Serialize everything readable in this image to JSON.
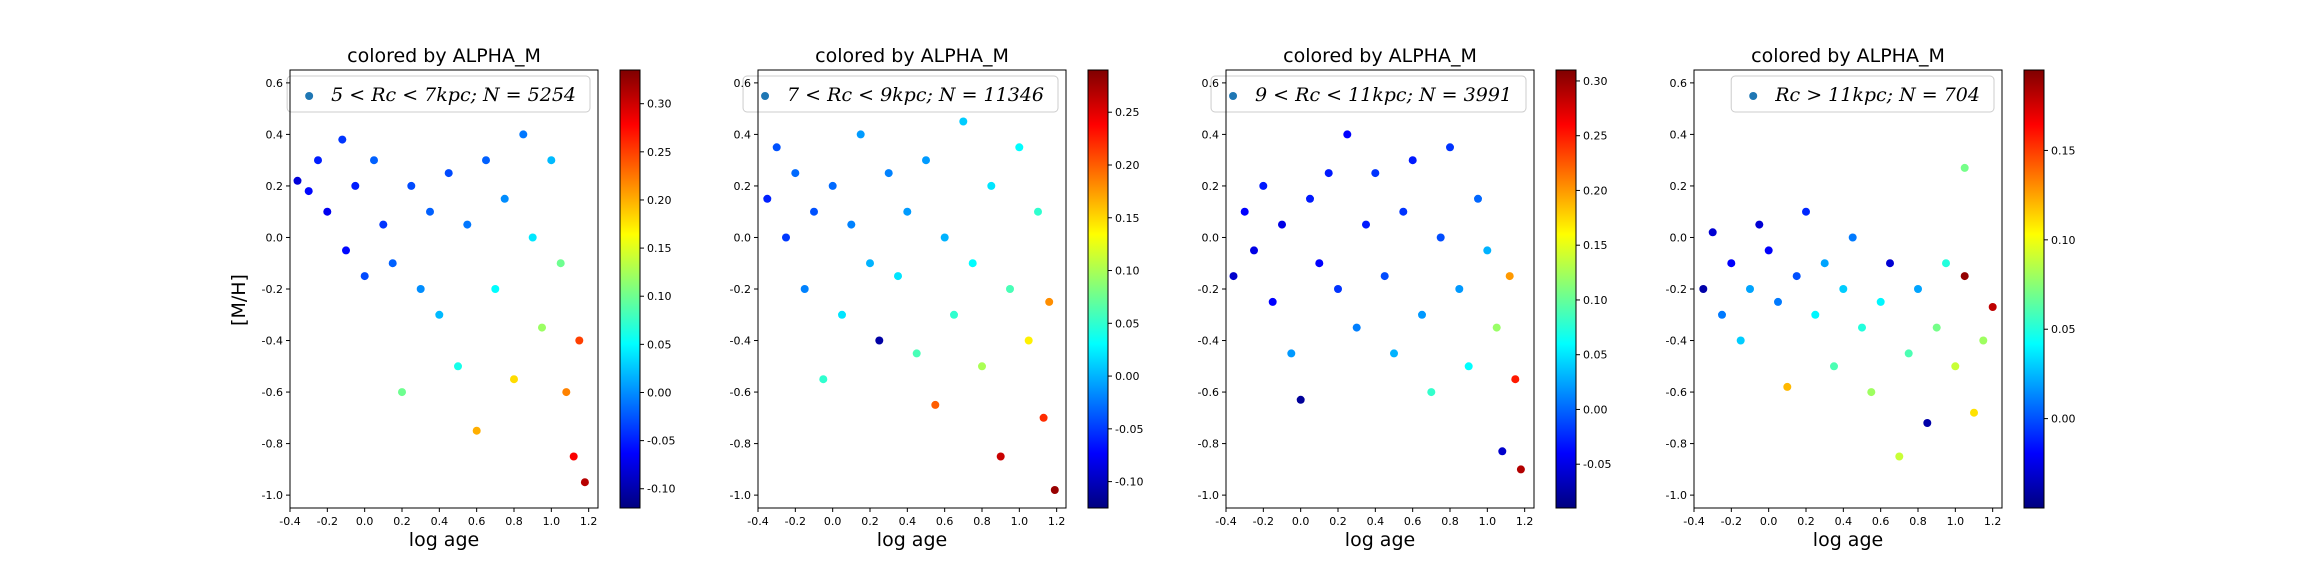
{
  "figure": {
    "shared_ylabel": "[M/H]",
    "colorscale": [
      "#00007f",
      "#0000ff",
      "#007fff",
      "#00ffff",
      "#7fff7f",
      "#ffff00",
      "#ff7f00",
      "#ff0000",
      "#7f0000"
    ]
  },
  "chart_data": [
    {
      "type": "scatter",
      "title": "colored by ALPHA_M",
      "xlabel": "log age",
      "ylabel": "[M/H]",
      "legend": {
        "label": "5 < Rc < 7kpc; N = 5254",
        "position": "top-right"
      },
      "xlim": [
        -0.4,
        1.25
      ],
      "ylim": [
        -1.05,
        0.65
      ],
      "xticks": [
        -0.4,
        -0.2,
        0.0,
        0.2,
        0.4,
        0.6,
        0.8,
        1.0,
        1.2
      ],
      "xtick_labels": [
        "-0.4",
        "-0.2",
        "0.0",
        "0.2",
        "0.4",
        "0.6",
        "0.8",
        "1.0",
        "1.2"
      ],
      "yticks": [
        -1.0,
        -0.8,
        -0.6,
        -0.4,
        -0.2,
        0.0,
        0.2,
        0.4,
        0.6
      ],
      "ytick_labels": [
        "-1.0",
        "-0.8",
        "-0.6",
        "-0.4",
        "-0.2",
        "0.0",
        "0.2",
        "0.4",
        "0.6"
      ],
      "colorbar": {
        "label": "ALPHA_M",
        "range": [
          -0.12,
          0.335
        ],
        "ticks": [
          -0.1,
          -0.05,
          0.0,
          0.05,
          0.1,
          0.15,
          0.2,
          0.25,
          0.3
        ],
        "tick_labels": [
          "-0.10",
          "-0.05",
          "0.00",
          "0.05",
          "0.10",
          "0.15",
          "0.20",
          "0.25",
          "0.30"
        ]
      },
      "points": [
        {
          "x": -0.36,
          "y": 0.22,
          "c": -0.08
        },
        {
          "x": -0.3,
          "y": 0.18,
          "c": -0.06
        },
        {
          "x": -0.25,
          "y": 0.3,
          "c": -0.05
        },
        {
          "x": -0.2,
          "y": 0.1,
          "c": -0.07
        },
        {
          "x": -0.12,
          "y": 0.38,
          "c": -0.04
        },
        {
          "x": -0.1,
          "y": -0.05,
          "c": -0.06
        },
        {
          "x": -0.05,
          "y": 0.2,
          "c": -0.05
        },
        {
          "x": 0.0,
          "y": -0.15,
          "c": -0.03
        },
        {
          "x": 0.05,
          "y": 0.3,
          "c": -0.02
        },
        {
          "x": 0.1,
          "y": 0.05,
          "c": -0.04
        },
        {
          "x": 0.15,
          "y": -0.1,
          "c": -0.02
        },
        {
          "x": 0.2,
          "y": -0.6,
          "c": 0.1
        },
        {
          "x": 0.25,
          "y": 0.2,
          "c": -0.03
        },
        {
          "x": 0.3,
          "y": -0.2,
          "c": 0.0
        },
        {
          "x": 0.35,
          "y": 0.1,
          "c": -0.02
        },
        {
          "x": 0.4,
          "y": -0.3,
          "c": 0.02
        },
        {
          "x": 0.45,
          "y": 0.25,
          "c": -0.03
        },
        {
          "x": 0.5,
          "y": -0.5,
          "c": 0.06
        },
        {
          "x": 0.55,
          "y": 0.05,
          "c": -0.01
        },
        {
          "x": 0.6,
          "y": -0.75,
          "c": 0.2
        },
        {
          "x": 0.65,
          "y": 0.3,
          "c": -0.02
        },
        {
          "x": 0.7,
          "y": -0.2,
          "c": 0.05
        },
        {
          "x": 0.75,
          "y": 0.15,
          "c": 0.0
        },
        {
          "x": 0.8,
          "y": -0.55,
          "c": 0.18
        },
        {
          "x": 0.85,
          "y": 0.4,
          "c": -0.01
        },
        {
          "x": 0.9,
          "y": 0.0,
          "c": 0.04
        },
        {
          "x": 0.95,
          "y": -0.35,
          "c": 0.12
        },
        {
          "x": 1.0,
          "y": 0.3,
          "c": 0.02
        },
        {
          "x": 1.05,
          "y": -0.1,
          "c": 0.1
        },
        {
          "x": 1.08,
          "y": -0.6,
          "c": 0.22
        },
        {
          "x": 1.12,
          "y": -0.85,
          "c": 0.28
        },
        {
          "x": 1.15,
          "y": -0.4,
          "c": 0.25
        },
        {
          "x": 1.18,
          "y": -0.95,
          "c": 0.31
        }
      ]
    },
    {
      "type": "scatter",
      "title": "colored by ALPHA_M",
      "xlabel": "log age",
      "ylabel": "",
      "legend": {
        "label": "7 < Rc < 9kpc; N = 11346",
        "position": "top-right"
      },
      "xlim": [
        -0.4,
        1.25
      ],
      "ylim": [
        -1.05,
        0.65
      ],
      "xticks": [
        -0.4,
        -0.2,
        0.0,
        0.2,
        0.4,
        0.6,
        0.8,
        1.0,
        1.2
      ],
      "xtick_labels": [
        "-0.4",
        "-0.2",
        "0.0",
        "0.2",
        "0.4",
        "0.6",
        "0.8",
        "1.0",
        "1.2"
      ],
      "yticks": [
        -1.0,
        -0.8,
        -0.6,
        -0.4,
        -0.2,
        0.0,
        0.2,
        0.4,
        0.6
      ],
      "ytick_labels": [
        "-1.0",
        "-0.8",
        "-0.6",
        "-0.4",
        "-0.2",
        "0.0",
        "0.2",
        "0.4",
        "0.6"
      ],
      "colorbar": {
        "label": "ALPHA_M",
        "range": [
          -0.125,
          0.29
        ],
        "ticks": [
          -0.1,
          -0.05,
          0.0,
          0.05,
          0.1,
          0.15,
          0.2,
          0.25
        ],
        "tick_labels": [
          "-0.10",
          "-0.05",
          "0.00",
          "0.05",
          "0.10",
          "0.15",
          "0.20",
          "0.25"
        ]
      },
      "points": [
        {
          "x": -0.35,
          "y": 0.15,
          "c": -0.06
        },
        {
          "x": -0.3,
          "y": 0.35,
          "c": -0.04
        },
        {
          "x": -0.25,
          "y": 0.0,
          "c": -0.05
        },
        {
          "x": -0.2,
          "y": 0.25,
          "c": -0.03
        },
        {
          "x": -0.15,
          "y": -0.2,
          "c": -0.02
        },
        {
          "x": -0.1,
          "y": 0.1,
          "c": -0.04
        },
        {
          "x": -0.05,
          "y": -0.55,
          "c": 0.05
        },
        {
          "x": 0.0,
          "y": 0.2,
          "c": -0.03
        },
        {
          "x": 0.05,
          "y": -0.3,
          "c": 0.02
        },
        {
          "x": 0.1,
          "y": 0.05,
          "c": -0.02
        },
        {
          "x": 0.15,
          "y": 0.4,
          "c": -0.01
        },
        {
          "x": 0.2,
          "y": -0.1,
          "c": 0.0
        },
        {
          "x": 0.25,
          "y": -0.4,
          "c": -0.11
        },
        {
          "x": 0.3,
          "y": 0.25,
          "c": -0.02
        },
        {
          "x": 0.35,
          "y": -0.15,
          "c": 0.02
        },
        {
          "x": 0.4,
          "y": 0.1,
          "c": -0.01
        },
        {
          "x": 0.45,
          "y": -0.45,
          "c": 0.06
        },
        {
          "x": 0.5,
          "y": 0.3,
          "c": -0.01
        },
        {
          "x": 0.55,
          "y": -0.65,
          "c": 0.2
        },
        {
          "x": 0.6,
          "y": 0.0,
          "c": 0.0
        },
        {
          "x": 0.65,
          "y": -0.3,
          "c": 0.05
        },
        {
          "x": 0.7,
          "y": 0.45,
          "c": 0.01
        },
        {
          "x": 0.75,
          "y": -0.1,
          "c": 0.03
        },
        {
          "x": 0.8,
          "y": -0.5,
          "c": 0.1
        },
        {
          "x": 0.85,
          "y": 0.2,
          "c": 0.02
        },
        {
          "x": 0.9,
          "y": -0.85,
          "c": 0.26
        },
        {
          "x": 0.95,
          "y": -0.2,
          "c": 0.06
        },
        {
          "x": 1.0,
          "y": 0.35,
          "c": 0.03
        },
        {
          "x": 1.05,
          "y": -0.4,
          "c": 0.14
        },
        {
          "x": 1.1,
          "y": 0.1,
          "c": 0.05
        },
        {
          "x": 1.13,
          "y": -0.7,
          "c": 0.22
        },
        {
          "x": 1.16,
          "y": -0.25,
          "c": 0.18
        },
        {
          "x": 1.19,
          "y": -0.98,
          "c": 0.28
        }
      ]
    },
    {
      "type": "scatter",
      "title": "colored by ALPHA_M",
      "xlabel": "log age",
      "ylabel": "",
      "legend": {
        "label": "9 < Rc < 11kpc; N = 3991",
        "position": "top-right"
      },
      "xlim": [
        -0.4,
        1.25
      ],
      "ylim": [
        -1.05,
        0.65
      ],
      "xticks": [
        -0.4,
        -0.2,
        0.0,
        0.2,
        0.4,
        0.6,
        0.8,
        1.0,
        1.2
      ],
      "xtick_labels": [
        "-0.4",
        "-0.2",
        "0.0",
        "0.2",
        "0.4",
        "0.6",
        "0.8",
        "1.0",
        "1.2"
      ],
      "yticks": [
        -1.0,
        -0.8,
        -0.6,
        -0.4,
        -0.2,
        0.0,
        0.2,
        0.4,
        0.6
      ],
      "ytick_labels": [
        "-1.0",
        "-0.8",
        "-0.6",
        "-0.4",
        "-0.2",
        "0.0",
        "0.2",
        "0.4",
        "0.6"
      ],
      "colorbar": {
        "label": "ALPHA_M",
        "range": [
          -0.09,
          0.31
        ],
        "ticks": [
          -0.05,
          0.0,
          0.05,
          0.1,
          0.15,
          0.2,
          0.25,
          0.3
        ],
        "tick_labels": [
          "-0.05",
          "0.00",
          "0.05",
          "0.10",
          "0.15",
          "0.20",
          "0.25",
          "0.30"
        ]
      },
      "points": [
        {
          "x": -0.36,
          "y": -0.15,
          "c": -0.06
        },
        {
          "x": -0.3,
          "y": 0.1,
          "c": -0.04
        },
        {
          "x": -0.25,
          "y": -0.05,
          "c": -0.05
        },
        {
          "x": -0.2,
          "y": 0.2,
          "c": -0.03
        },
        {
          "x": -0.15,
          "y": -0.25,
          "c": -0.04
        },
        {
          "x": -0.1,
          "y": 0.05,
          "c": -0.05
        },
        {
          "x": -0.05,
          "y": -0.45,
          "c": 0.02
        },
        {
          "x": 0.0,
          "y": -0.63,
          "c": -0.08
        },
        {
          "x": 0.05,
          "y": 0.15,
          "c": -0.03
        },
        {
          "x": 0.1,
          "y": -0.1,
          "c": -0.04
        },
        {
          "x": 0.15,
          "y": 0.25,
          "c": -0.03
        },
        {
          "x": 0.2,
          "y": -0.2,
          "c": -0.02
        },
        {
          "x": 0.25,
          "y": 0.4,
          "c": -0.04
        },
        {
          "x": 0.3,
          "y": -0.35,
          "c": 0.01
        },
        {
          "x": 0.35,
          "y": 0.05,
          "c": -0.03
        },
        {
          "x": 0.4,
          "y": 0.25,
          "c": -0.02
        },
        {
          "x": 0.45,
          "y": -0.15,
          "c": -0.01
        },
        {
          "x": 0.5,
          "y": -0.45,
          "c": 0.03
        },
        {
          "x": 0.55,
          "y": 0.1,
          "c": -0.02
        },
        {
          "x": 0.6,
          "y": 0.3,
          "c": -0.03
        },
        {
          "x": 0.65,
          "y": -0.3,
          "c": 0.02
        },
        {
          "x": 0.7,
          "y": -0.6,
          "c": 0.08
        },
        {
          "x": 0.75,
          "y": 0.0,
          "c": -0.01
        },
        {
          "x": 0.8,
          "y": 0.35,
          "c": -0.02
        },
        {
          "x": 0.85,
          "y": -0.2,
          "c": 0.02
        },
        {
          "x": 0.9,
          "y": -0.5,
          "c": 0.06
        },
        {
          "x": 0.95,
          "y": 0.15,
          "c": 0.0
        },
        {
          "x": 1.0,
          "y": -0.05,
          "c": 0.03
        },
        {
          "x": 1.05,
          "y": -0.35,
          "c": 0.12
        },
        {
          "x": 1.08,
          "y": -0.83,
          "c": -0.06
        },
        {
          "x": 1.12,
          "y": -0.15,
          "c": 0.2
        },
        {
          "x": 1.15,
          "y": -0.55,
          "c": 0.25
        },
        {
          "x": 1.18,
          "y": -0.9,
          "c": 0.29
        }
      ]
    },
    {
      "type": "scatter",
      "title": "colored by ALPHA_M",
      "xlabel": "log age",
      "ylabel": "",
      "legend": {
        "label": "Rc > 11kpc; N = 704",
        "position": "top-right"
      },
      "xlim": [
        -0.4,
        1.25
      ],
      "ylim": [
        -1.05,
        0.65
      ],
      "xticks": [
        -0.4,
        -0.2,
        0.0,
        0.2,
        0.4,
        0.6,
        0.8,
        1.0,
        1.2
      ],
      "xtick_labels": [
        "-0.4",
        "-0.2",
        "0.0",
        "0.2",
        "0.4",
        "0.6",
        "0.8",
        "1.0",
        "1.2"
      ],
      "yticks": [
        -1.0,
        -0.8,
        -0.6,
        -0.4,
        -0.2,
        0.0,
        0.2,
        0.4,
        0.6
      ],
      "ytick_labels": [
        "-1.0",
        "-0.8",
        "-0.6",
        "-0.4",
        "-0.2",
        "0.0",
        "0.2",
        "0.4",
        "0.6"
      ],
      "colorbar": {
        "label": "ALPHA_M",
        "range": [
          -0.05,
          0.195
        ],
        "ticks": [
          0.0,
          0.05,
          0.1,
          0.15
        ],
        "tick_labels": [
          "0.00",
          "0.05",
          "0.10",
          "0.15"
        ]
      },
      "points": [
        {
          "x": -0.35,
          "y": -0.2,
          "c": -0.04
        },
        {
          "x": -0.3,
          "y": 0.02,
          "c": -0.03
        },
        {
          "x": -0.25,
          "y": -0.3,
          "c": 0.01
        },
        {
          "x": -0.2,
          "y": -0.1,
          "c": -0.02
        },
        {
          "x": -0.15,
          "y": -0.4,
          "c": 0.03
        },
        {
          "x": -0.1,
          "y": -0.2,
          "c": 0.02
        },
        {
          "x": -0.05,
          "y": 0.05,
          "c": -0.03
        },
        {
          "x": 0.0,
          "y": -0.05,
          "c": -0.02
        },
        {
          "x": 0.05,
          "y": -0.25,
          "c": 0.01
        },
        {
          "x": 0.1,
          "y": -0.58,
          "c": 0.12
        },
        {
          "x": 0.15,
          "y": -0.15,
          "c": 0.0
        },
        {
          "x": 0.2,
          "y": 0.1,
          "c": -0.01
        },
        {
          "x": 0.25,
          "y": -0.3,
          "c": 0.04
        },
        {
          "x": 0.3,
          "y": -0.1,
          "c": 0.02
        },
        {
          "x": 0.35,
          "y": -0.5,
          "c": 0.06
        },
        {
          "x": 0.4,
          "y": -0.2,
          "c": 0.03
        },
        {
          "x": 0.45,
          "y": 0.0,
          "c": 0.01
        },
        {
          "x": 0.5,
          "y": -0.35,
          "c": 0.05
        },
        {
          "x": 0.55,
          "y": -0.6,
          "c": 0.08
        },
        {
          "x": 0.6,
          "y": -0.25,
          "c": 0.04
        },
        {
          "x": 0.65,
          "y": -0.1,
          "c": -0.03
        },
        {
          "x": 0.7,
          "y": -0.85,
          "c": 0.09
        },
        {
          "x": 0.75,
          "y": -0.45,
          "c": 0.06
        },
        {
          "x": 0.8,
          "y": -0.2,
          "c": 0.02
        },
        {
          "x": 0.85,
          "y": -0.72,
          "c": -0.04
        },
        {
          "x": 0.9,
          "y": -0.35,
          "c": 0.07
        },
        {
          "x": 0.95,
          "y": -0.1,
          "c": 0.05
        },
        {
          "x": 1.0,
          "y": -0.5,
          "c": 0.09
        },
        {
          "x": 1.05,
          "y": -0.15,
          "c": 0.19
        },
        {
          "x": 1.05,
          "y": 0.27,
          "c": 0.07
        },
        {
          "x": 1.1,
          "y": -0.68,
          "c": 0.11
        },
        {
          "x": 1.15,
          "y": -0.4,
          "c": 0.08
        },
        {
          "x": 1.2,
          "y": -0.27,
          "c": 0.18
        }
      ]
    }
  ]
}
